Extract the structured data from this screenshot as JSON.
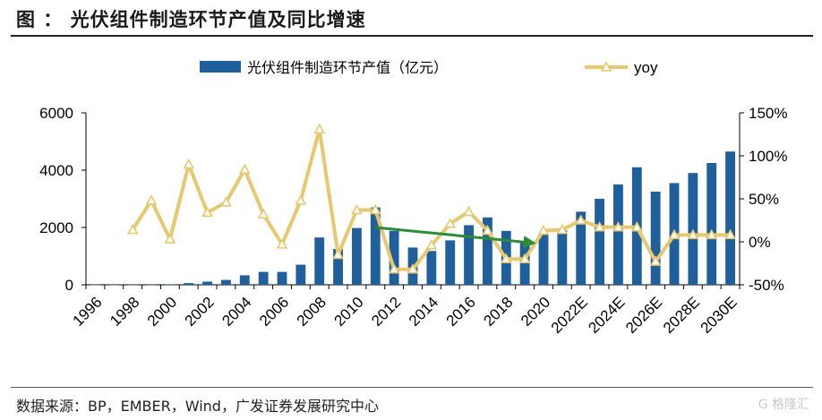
{
  "title": "图 ： 光伏组件制造环节产值及同比增速",
  "source": "数据来源：BP，EMBER，Wind，广发证券发展研究中心",
  "watermark": "G 格隆汇",
  "colors": {
    "bar": "#1f5f9c",
    "line": "#e6c86e",
    "arrow": "#2e8b3a"
  },
  "chart_data": {
    "type": "bar",
    "categories": [
      "1996",
      "1997",
      "1998",
      "1999",
      "2000",
      "2001",
      "2002",
      "2003",
      "2004",
      "2005",
      "2006",
      "2007",
      "2008",
      "2009",
      "2010",
      "2011",
      "2012",
      "2013",
      "2014",
      "2015",
      "2016",
      "2017",
      "2018",
      "2019",
      "2020",
      "2021",
      "2022E",
      "2023E",
      "2024E",
      "2025E",
      "2026E",
      "2027E",
      "2028E",
      "2029E",
      "2030E"
    ],
    "x_tick_labels": [
      "1996",
      "1998",
      "2000",
      "2002",
      "2004",
      "2006",
      "2008",
      "2010",
      "2012",
      "2014",
      "2016",
      "2018",
      "2020",
      "2022E",
      "2024E",
      "2026E",
      "2028E",
      "2030E"
    ],
    "series": [
      {
        "name": "光伏组件制造环节产值（亿元）",
        "axis": "left",
        "kind": "bar",
        "values": [
          2,
          3,
          4,
          5,
          6,
          60,
          110,
          170,
          330,
          450,
          450,
          700,
          1650,
          1250,
          1980,
          2700,
          1880,
          1300,
          1180,
          1550,
          2080,
          2350,
          1880,
          1530,
          1760,
          1900,
          2550,
          3000,
          3500,
          4100,
          3250,
          3550,
          3900,
          4250,
          4650
        ]
      },
      {
        "name": "yoy",
        "axis": "right",
        "kind": "line",
        "values": [
          null,
          null,
          14,
          48,
          3,
          90,
          34,
          46,
          84,
          32,
          -3,
          48,
          131,
          -15,
          37,
          37,
          -32,
          -32,
          -4,
          21,
          35,
          13,
          -20,
          -20,
          13,
          14,
          25,
          17,
          17,
          17,
          -23,
          8,
          8,
          8,
          8
        ]
      }
    ],
    "y_left": {
      "min": 0,
      "max": 6000,
      "ticks": [
        0,
        2000,
        4000,
        6000
      ]
    },
    "y_right": {
      "min": -50,
      "max": 150,
      "ticks": [
        "-50%",
        "0%",
        "50%",
        "100%",
        "150%"
      ]
    },
    "annotation": {
      "type": "arrow",
      "from_category": "2011",
      "from_value": 2000,
      "to_category": "2019",
      "to_value": 1450
    },
    "legend_position": "top"
  }
}
